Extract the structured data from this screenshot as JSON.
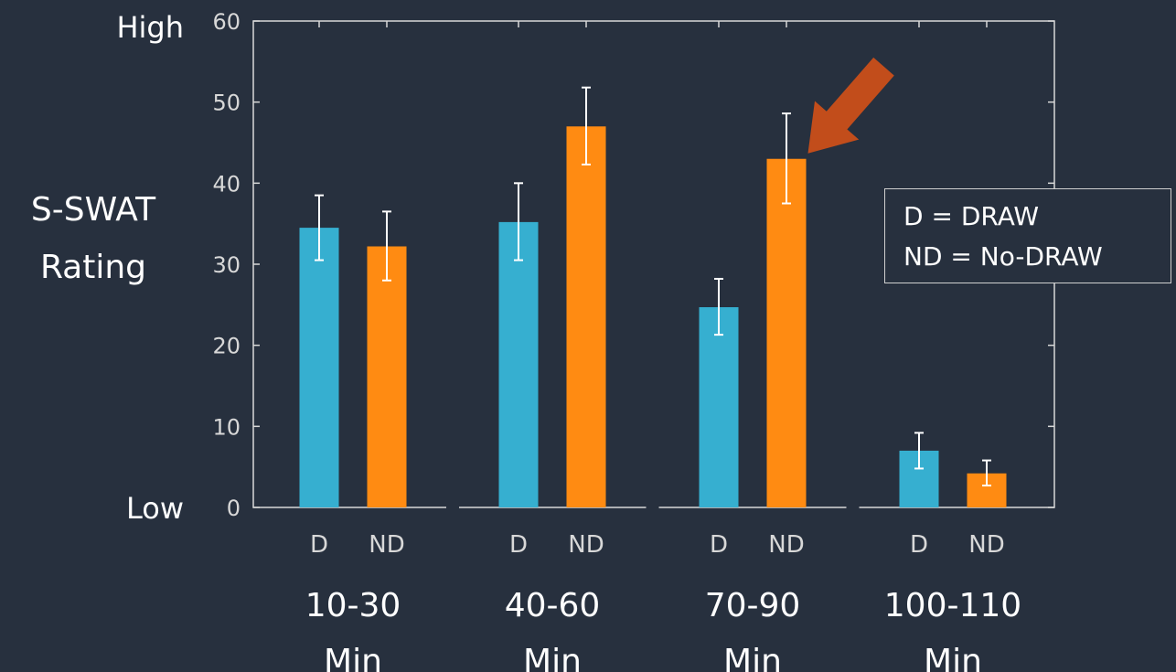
{
  "chart_data": {
    "type": "bar",
    "title": "",
    "xlabel": "",
    "ylabel_lines": [
      "S-SWAT",
      "Rating"
    ],
    "y_high_label": "High",
    "y_low_label": "Low",
    "ylim": [
      0,
      60
    ],
    "yticks": [
      0,
      10,
      20,
      30,
      40,
      50,
      60
    ],
    "groups": [
      {
        "label_lines": [
          "10-30",
          "Min"
        ],
        "bars": [
          {
            "label": "D",
            "value": 34.5,
            "err_low": 30.5,
            "err_high": 38.5
          },
          {
            "label": "ND",
            "value": 32.2,
            "err_low": 28.0,
            "err_high": 36.5
          }
        ]
      },
      {
        "label_lines": [
          "40-60",
          "Min"
        ],
        "bars": [
          {
            "label": "D",
            "value": 35.2,
            "err_low": 30.5,
            "err_high": 40.0
          },
          {
            "label": "ND",
            "value": 47.0,
            "err_low": 42.3,
            "err_high": 51.8
          }
        ]
      },
      {
        "label_lines": [
          "70-90",
          "Min"
        ],
        "bars": [
          {
            "label": "D",
            "value": 24.7,
            "err_low": 21.3,
            "err_high": 28.2
          },
          {
            "label": "ND",
            "value": 43.0,
            "err_low": 37.5,
            "err_high": 48.6
          }
        ]
      },
      {
        "label_lines": [
          "100-110",
          "Min"
        ],
        "bars": [
          {
            "label": "D",
            "value": 7.0,
            "err_low": 4.8,
            "err_high": 9.2
          },
          {
            "label": "ND",
            "value": 4.2,
            "err_low": 2.7,
            "err_high": 5.8
          }
        ]
      }
    ],
    "colors": {
      "D": "#36afd0",
      "ND": "#ff8b12",
      "errorbar": "#ffffff",
      "axis": "#d8d8d8",
      "arrow": "#c24d1b"
    },
    "legend": {
      "placement": "right",
      "lines": [
        "D = DRAW",
        "ND = No-DRAW"
      ]
    },
    "annotation": {
      "type": "arrow",
      "points_to_group": 2,
      "points_to_bar": "ND"
    }
  }
}
